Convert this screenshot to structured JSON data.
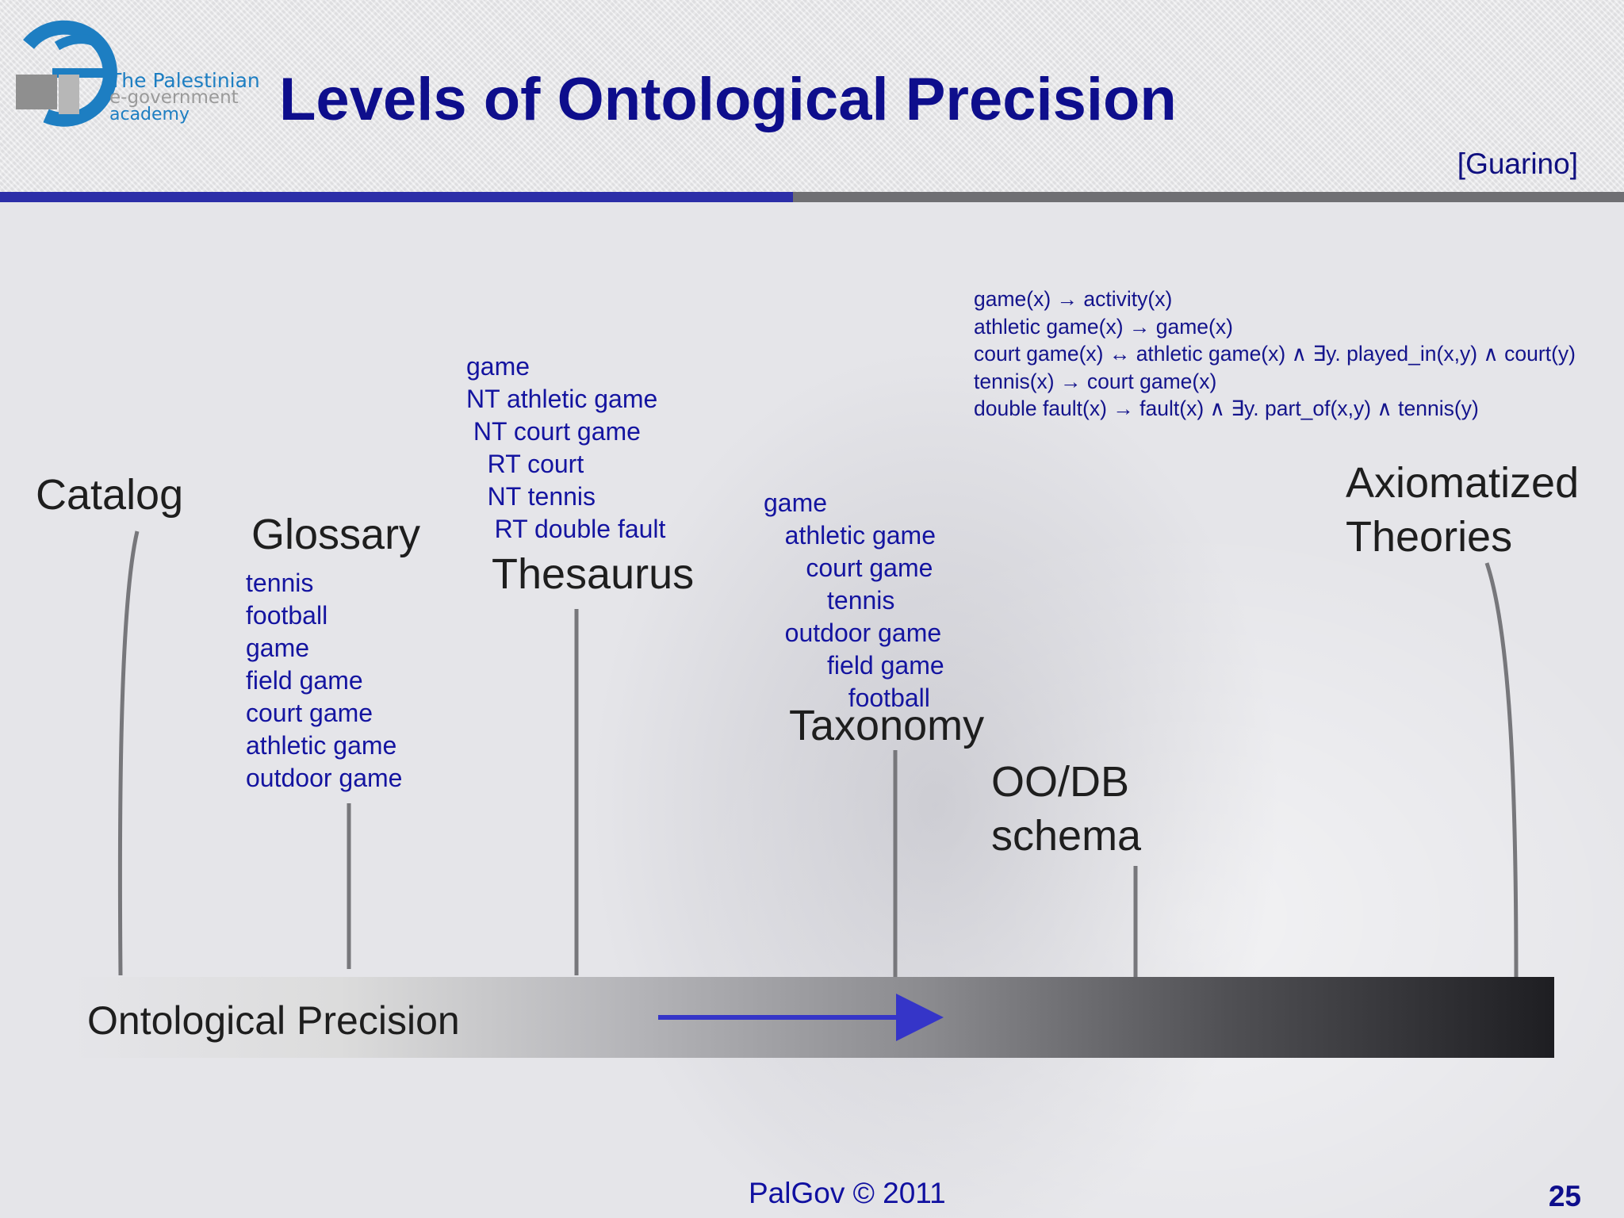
{
  "header": {
    "logo": {
      "line1": "The Palestinian",
      "line2": "e-government",
      "line3": "academy"
    },
    "title": "Levels of Ontological Precision",
    "citation": "[Guarino]"
  },
  "stages": {
    "catalog": "Catalog",
    "glossary": "Glossary",
    "thesaurus": "Thesaurus",
    "taxonomy": "Taxonomy",
    "oodb_line1": "OO/DB",
    "oodb_line2": "schema",
    "axiom_line1": "Axiomatized",
    "axiom_line2": "Theories"
  },
  "glossary_terms": [
    "tennis",
    "football",
    "game",
    "field game",
    "court game",
    "athletic game",
    "outdoor game"
  ],
  "thesaurus_terms": [
    "game",
    "NT athletic game",
    " NT court game",
    "   RT court",
    "   NT tennis",
    "    RT double fault"
  ],
  "taxonomy_terms": [
    "game",
    "   athletic game",
    "      court game",
    "         tennis",
    "   outdoor game",
    "         field game",
    "            football"
  ],
  "axioms": [
    "game(x) → activity(x)",
    "athletic game(x) → game(x)",
    "court game(x) ↔ athletic game(x) ∧ ∃y. played_in(x,y) ∧ court(y)",
    "tennis(x) → court game(x)",
    "double fault(x) → fault(x) ∧ ∃y. part_of(x,y) ∧ tennis(y)"
  ],
  "precision_bar": {
    "label": "Ontological Precision"
  },
  "footer": {
    "copyright": "PalGov © 2011",
    "page_number": "25"
  },
  "colors": {
    "title": "#0e0e8c",
    "term_blue": "#1414a0",
    "rule_blue": "#2c2ea8",
    "arrow_blue": "#3535c8",
    "connector_gray": "#77777b"
  }
}
